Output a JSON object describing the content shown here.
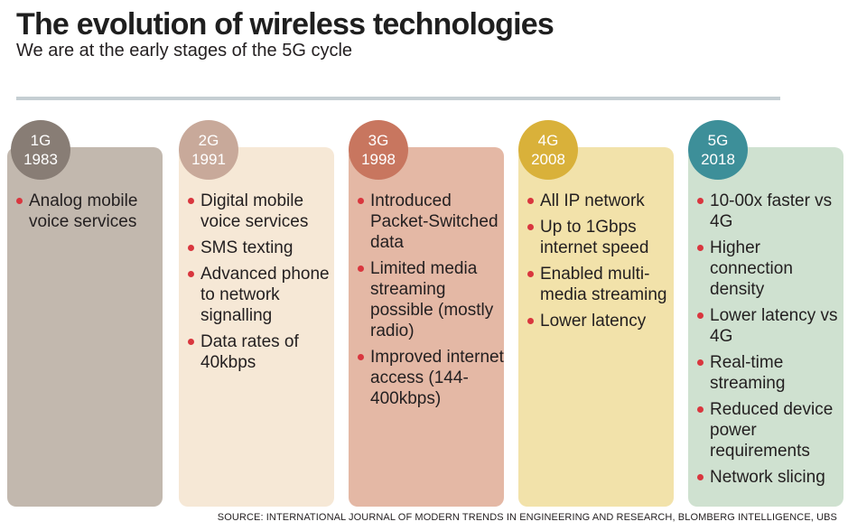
{
  "header": {
    "title": "The evolution of wireless technologies",
    "subtitle": "We are at the early stages of the 5G cycle"
  },
  "generations": [
    {
      "gen": "1G",
      "year": "1983",
      "badge_color": "#887d75",
      "panel_color": "#c2b8ae",
      "items": [
        "Analog mobile voice services"
      ]
    },
    {
      "gen": "2G",
      "year": "1991",
      "badge_color": "#c8a99a",
      "panel_color": "#f6e8d6",
      "items": [
        "Digital mobile voice services",
        "SMS texting",
        "Advanced phone to network signalling",
        "Data rates of 40kbps"
      ]
    },
    {
      "gen": "3G",
      "year": "1998",
      "badge_color": "#c8765f",
      "panel_color": "#e4b8a5",
      "items": [
        "Introduced Packet-Switched data",
        "Limited media streaming possible (mostly radio)",
        "Improved internet access (144-400kbps)"
      ]
    },
    {
      "gen": "4G",
      "year": "2008",
      "badge_color": "#d9b13a",
      "panel_color": "#f2e2aa",
      "items": [
        "All IP network",
        "Up to 1Gbps internet speed",
        "Enabled multi-media streaming",
        "Lower latency"
      ]
    },
    {
      "gen": "5G",
      "year": "2018",
      "badge_color": "#3d8f99",
      "panel_color": "#cfe1d0",
      "items": [
        "10-00x faster vs 4G",
        "Higher connection density",
        "Lower latency vs 4G",
        "Real-time streaming",
        "Reduced device power requirements",
        "Network slicing"
      ]
    }
  ],
  "footer": {
    "source": "SOURCE: INTERNATIONAL JOURNAL OF MODERN TRENDS IN ENGINEERING AND RESEARCH, BLOMBERG INTELLIGENCE, UBS"
  }
}
